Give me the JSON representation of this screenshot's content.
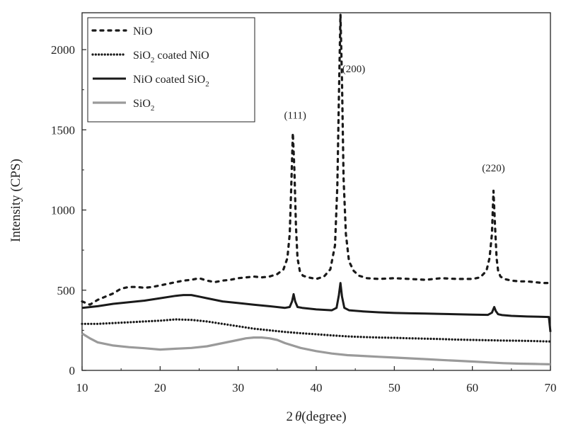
{
  "chart_data": {
    "type": "line",
    "xlabel_prefix": "2",
    "xlabel_theta": "θ",
    "xlabel_suffix": "(degree)",
    "ylabel": "Intensity (CPS)",
    "xlim": [
      10,
      70
    ],
    "ylim": [
      0,
      2230
    ],
    "xticks": [
      10,
      20,
      30,
      40,
      50,
      60,
      70
    ],
    "yticks": [
      0,
      500,
      1000,
      1500,
      2000
    ],
    "legend_position": "top-left",
    "legend": [
      {
        "series": "NiO",
        "text": "NiO",
        "sub": "",
        "tail": ""
      },
      {
        "series": "SiO2 coated NiO",
        "text": "SiO",
        "sub": "2",
        "tail": " coated NiO"
      },
      {
        "series": "NiO coated SiO2",
        "text": "NiO coated SiO",
        "sub": "2",
        "tail": ""
      },
      {
        "series": "SiO2",
        "text": "SiO",
        "sub": "2",
        "tail": ""
      }
    ],
    "annotations": [
      {
        "text": "(111)",
        "x": 37.3,
        "y": 1570
      },
      {
        "text": "(200)",
        "x": 44.8,
        "y": 1860
      },
      {
        "text": "(220)",
        "x": 62.7,
        "y": 1240
      }
    ],
    "series": [
      {
        "name": "NiO",
        "color": "#1a1a1a",
        "style": "dash",
        "width": 3.2,
        "x": [
          10,
          11,
          12,
          13,
          14,
          15,
          16,
          17,
          18,
          19,
          20,
          21,
          22,
          23,
          24,
          25,
          26,
          27,
          28,
          29,
          30,
          31,
          32,
          33,
          34,
          35,
          35.8,
          36.3,
          36.6,
          36.8,
          37.0,
          37.2,
          37.4,
          37.6,
          37.9,
          38.3,
          39,
          40,
          41,
          41.8,
          42.4,
          42.7,
          42.9,
          43.1,
          43.3,
          43.5,
          43.8,
          44.2,
          44.8,
          45.5,
          46.5,
          48,
          50,
          52,
          54,
          56,
          58,
          60,
          61,
          61.8,
          62.2,
          62.5,
          62.7,
          62.9,
          63.1,
          63.3,
          63.6,
          64.1,
          65,
          66,
          67,
          68,
          69,
          70
        ],
        "y": [
          430,
          410,
          440,
          460,
          480,
          510,
          520,
          520,
          515,
          520,
          530,
          540,
          550,
          560,
          565,
          575,
          560,
          550,
          560,
          565,
          575,
          580,
          585,
          580,
          585,
          600,
          630,
          700,
          850,
          1150,
          1480,
          1250,
          900,
          700,
          620,
          590,
          580,
          570,
          585,
          630,
          780,
          1150,
          1700,
          2220,
          1800,
          1200,
          850,
          680,
          620,
          590,
          575,
          570,
          575,
          570,
          565,
          575,
          570,
          570,
          580,
          620,
          700,
          850,
          1120,
          900,
          700,
          620,
          585,
          570,
          560,
          555,
          555,
          550,
          545,
          545
        ]
      },
      {
        "name": "SiO2 coated NiO",
        "color": "#1a1a1a",
        "style": "dot",
        "width": 3.2,
        "x": [
          10,
          12,
          14,
          16,
          18,
          20,
          22,
          24,
          26,
          28,
          30,
          32,
          34,
          36,
          38,
          40,
          42,
          44,
          46,
          48,
          50,
          52,
          54,
          56,
          58,
          60,
          62,
          64,
          66,
          68,
          70
        ],
        "y": [
          290,
          290,
          295,
          300,
          305,
          310,
          318,
          315,
          305,
          290,
          275,
          260,
          250,
          240,
          232,
          225,
          218,
          212,
          208,
          205,
          203,
          200,
          198,
          195,
          192,
          190,
          188,
          186,
          185,
          183,
          180
        ]
      },
      {
        "name": "NiO coated SiO2",
        "color": "#1a1a1a",
        "style": "solid",
        "width": 3,
        "x": [
          10,
          12,
          14,
          16,
          18,
          20,
          22,
          23,
          24,
          25,
          26,
          28,
          30,
          32,
          34,
          36,
          36.6,
          36.9,
          37.1,
          37.3,
          37.6,
          38.2,
          40,
          42,
          42.6,
          42.9,
          43.1,
          43.3,
          43.6,
          44.2,
          46,
          48,
          50,
          52,
          54,
          56,
          58,
          60,
          62,
          62.5,
          62.8,
          63.0,
          63.3,
          63.8,
          65,
          67,
          69,
          69.8,
          70
        ],
        "y": [
          390,
          400,
          415,
          425,
          435,
          450,
          465,
          470,
          470,
          460,
          450,
          430,
          420,
          410,
          400,
          390,
          395,
          430,
          475,
          430,
          395,
          390,
          380,
          375,
          390,
          470,
          545,
          460,
          390,
          375,
          368,
          362,
          358,
          356,
          354,
          352,
          350,
          348,
          346,
          360,
          395,
          370,
          350,
          345,
          340,
          336,
          334,
          333,
          240
        ]
      },
      {
        "name": "SiO2",
        "color": "#9a9a9a",
        "style": "solid",
        "width": 3.2,
        "x": [
          10,
          11,
          12,
          14,
          16,
          18,
          20,
          22,
          24,
          26,
          28,
          30,
          31,
          32,
          33,
          34,
          35,
          36,
          38,
          40,
          42,
          44,
          46,
          48,
          50,
          52,
          54,
          56,
          58,
          60,
          62,
          64,
          66,
          68,
          70
        ],
        "y": [
          230,
          200,
          175,
          155,
          145,
          138,
          130,
          135,
          140,
          150,
          170,
          190,
          200,
          205,
          205,
          200,
          190,
          170,
          140,
          120,
          105,
          95,
          90,
          85,
          80,
          75,
          70,
          65,
          60,
          55,
          50,
          45,
          42,
          40,
          38
        ]
      }
    ]
  }
}
